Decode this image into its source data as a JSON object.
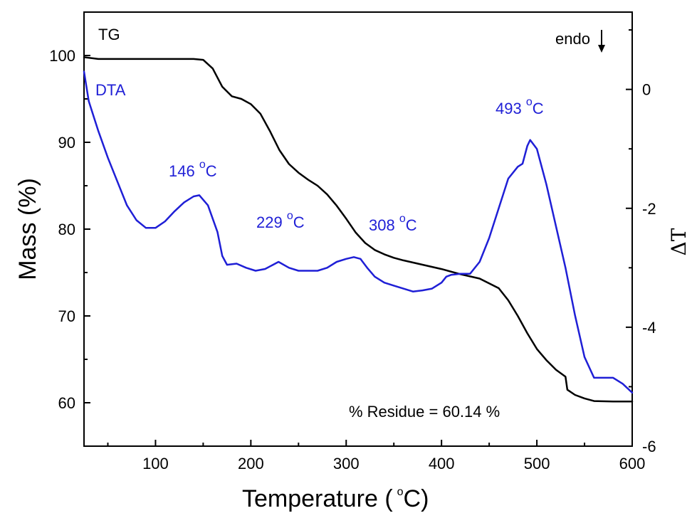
{
  "chart_data": {
    "type": "line",
    "xlabel": "Temperature (",
    "xlabel_unit_sup": "o",
    "xlabel_unit": "C)",
    "ylabel_left": "Mass (%)",
    "ylabel_right": "ΔT",
    "xlim": [
      25,
      600
    ],
    "ylim_left": [
      55,
      105
    ],
    "ylim_right": [
      -6,
      1.3
    ],
    "x_ticks": [
      100,
      200,
      300,
      400,
      500,
      600
    ],
    "y_left_ticks": [
      60,
      70,
      80,
      90,
      100
    ],
    "y_right_ticks": [
      0,
      -2,
      -4,
      -6
    ],
    "colors": {
      "TG": "#000000",
      "DTA": "#1f1fd6"
    },
    "series": [
      {
        "name": "TG",
        "axis": "left",
        "x": [
          25,
          40,
          60,
          80,
          100,
          120,
          140,
          150,
          160,
          170,
          180,
          190,
          200,
          210,
          220,
          230,
          240,
          250,
          260,
          270,
          280,
          290,
          300,
          310,
          320,
          330,
          340,
          350,
          360,
          380,
          400,
          420,
          440,
          460,
          470,
          480,
          490,
          500,
          510,
          520,
          530,
          532,
          540,
          550,
          560,
          580,
          600
        ],
        "y": [
          99.8,
          99.6,
          99.6,
          99.6,
          99.6,
          99.6,
          99.6,
          99.5,
          98.5,
          96.4,
          95.3,
          95.0,
          94.4,
          93.3,
          91.3,
          89.1,
          87.5,
          86.5,
          85.7,
          85.0,
          84.0,
          82.7,
          81.2,
          79.6,
          78.4,
          77.6,
          77.1,
          76.7,
          76.4,
          75.9,
          75.4,
          74.8,
          74.3,
          73.2,
          71.8,
          70.0,
          68.0,
          66.2,
          64.9,
          63.8,
          63.0,
          61.5,
          60.9,
          60.5,
          60.2,
          60.14,
          60.14
        ]
      },
      {
        "name": "DTA",
        "axis": "right",
        "x": [
          25,
          30,
          40,
          50,
          60,
          70,
          80,
          90,
          100,
          110,
          120,
          130,
          140,
          146,
          155,
          165,
          170,
          175,
          185,
          195,
          205,
          215,
          229,
          240,
          250,
          260,
          270,
          280,
          290,
          300,
          308,
          315,
          322,
          330,
          340,
          350,
          360,
          370,
          380,
          390,
          400,
          405,
          410,
          420,
          430,
          440,
          450,
          460,
          470,
          480,
          485,
          490,
          493,
          500,
          510,
          520,
          530,
          540,
          550,
          560,
          570,
          580,
          590,
          600
        ],
        "y": [
          0.3,
          -0.2,
          -0.7,
          -1.15,
          -1.55,
          -1.95,
          -2.2,
          -2.33,
          -2.33,
          -2.22,
          -2.05,
          -1.9,
          -1.8,
          -1.78,
          -1.95,
          -2.4,
          -2.8,
          -2.95,
          -2.93,
          -3.0,
          -3.05,
          -3.02,
          -2.9,
          -3.0,
          -3.05,
          -3.05,
          -3.05,
          -3.0,
          -2.9,
          -2.85,
          -2.82,
          -2.85,
          -3.0,
          -3.15,
          -3.25,
          -3.3,
          -3.35,
          -3.4,
          -3.38,
          -3.35,
          -3.25,
          -3.15,
          -3.12,
          -3.1,
          -3.1,
          -2.9,
          -2.5,
          -2.0,
          -1.5,
          -1.3,
          -1.25,
          -0.95,
          -0.85,
          -1.0,
          -1.6,
          -2.3,
          -3.0,
          -3.8,
          -4.5,
          -4.85,
          -4.85,
          -4.85,
          -4.95,
          -5.1
        ]
      }
    ],
    "annotations": {
      "tg_label": "TG",
      "dta_label": "DTA",
      "endo_label": "endo",
      "p1_text": "146 ",
      "p2_text": "229 ",
      "p3_text": "308 ",
      "p4_text": "493 ",
      "deg_sup": "o",
      "deg_c": "C",
      "residue": "% Residue = 60.14 %"
    }
  }
}
